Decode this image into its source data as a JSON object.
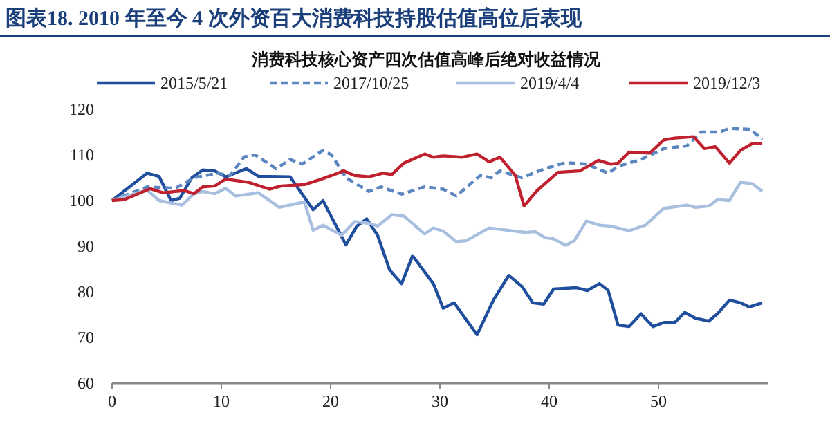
{
  "chart_data": {
    "type": "line",
    "title": "图表18.  2010 年至今 4 次外资百大消费科技持股估值高位后表现",
    "subtitle": "消费科技核心资产四次估值高峰后绝对收益情况",
    "xlim": [
      0,
      60
    ],
    "xticks": [
      0,
      10,
      20,
      30,
      40,
      50
    ],
    "ylim": [
      60,
      120
    ],
    "yticks": [
      60,
      70,
      80,
      90,
      100,
      110,
      120
    ],
    "grid": false,
    "legend": "top",
    "marker": "none",
    "series": [
      {
        "name": "2015/5/21",
        "color": "#1f4e9c",
        "line_style": "solid",
        "x": [
          0,
          3.2,
          4.3,
          5.4,
          6.2,
          7.3,
          8.3,
          9.4,
          10.4,
          12.3,
          13.4,
          16.3,
          18.4,
          19.3,
          21.4,
          22.4,
          23.3,
          24.3,
          25.4,
          26.5,
          27.5,
          29.4,
          30.3,
          31.3,
          33.4,
          34.9,
          36.3,
          37.5,
          38.5,
          39.5,
          40.4,
          42.5,
          43.5,
          44.6,
          45.4,
          46.3,
          47.3,
          48.4,
          49.5,
          50.5,
          51.5,
          52.4,
          53.4,
          54.6,
          55.4,
          56.5,
          57.5,
          58.3,
          59.5
        ],
        "values": [
          100,
          106,
          105.3,
          100,
          100.5,
          105,
          106.7,
          106.5,
          105.2,
          107,
          105.3,
          105.2,
          98,
          100,
          90.3,
          94.4,
          96,
          92.4,
          84.8,
          81.8,
          87.9,
          81.8,
          76.4,
          77.6,
          70.6,
          78.2,
          83.6,
          81.2,
          77.6,
          77.3,
          80.6,
          80.9,
          80.3,
          81.8,
          80.3,
          72.7,
          72.4,
          75.2,
          72.4,
          73.3,
          73.3,
          75.5,
          74.2,
          73.6,
          75.2,
          78.2,
          77.6,
          76.7,
          77.6
        ]
      },
      {
        "name": "2017/10/25",
        "color": "#5b86c0",
        "line_style": "dashed",
        "x": [
          0,
          3.2,
          5.8,
          7.5,
          9.6,
          10.8,
          12.1,
          13.1,
          15,
          16.3,
          17.4,
          19.3,
          20.1,
          21.4,
          23.5,
          24.6,
          26.5,
          28.6,
          30.3,
          31.5,
          33.7,
          34.7,
          35.5,
          37.5,
          39.6,
          41.5,
          43.4,
          45.4,
          46.3,
          48.4,
          50.5,
          52.6,
          53.9,
          55.6,
          56.5,
          58.4,
          59.5
        ],
        "values": [
          100,
          103,
          102.7,
          105,
          106,
          105.5,
          109.6,
          110,
          107,
          109,
          108,
          111,
          110,
          105,
          102,
          103,
          101.4,
          103,
          102.5,
          101,
          105.5,
          105,
          106.5,
          105,
          107,
          108.3,
          108,
          106,
          107.5,
          109,
          111.4,
          112,
          115,
          115,
          115.8,
          115.6,
          113.4
        ]
      },
      {
        "name": "2019/4/4",
        "color": "#a9bfe0",
        "line_style": "solid",
        "x": [
          0,
          3.2,
          4.3,
          6.4,
          7.5,
          8.3,
          9.4,
          10.4,
          11.3,
          13.4,
          15.3,
          17.6,
          18.4,
          19.3,
          21,
          22.2,
          23.5,
          24.3,
          25.6,
          26.7,
          28.6,
          29.4,
          30.3,
          31.5,
          32.4,
          34.5,
          37.9,
          38.7,
          39.6,
          40.4,
          41.5,
          42.3,
          43.4,
          44.6,
          45.6,
          47.3,
          48.8,
          50.5,
          52.6,
          53.4,
          54.6,
          55.4,
          56.5,
          57.5,
          58.6,
          59.5
        ],
        "values": [
          100,
          102.3,
          100,
          99,
          101.5,
          102,
          101.5,
          102.7,
          101,
          101.7,
          98.5,
          99.7,
          93.5,
          94.6,
          92.4,
          95.4,
          95,
          94.4,
          96.9,
          96.6,
          92.7,
          94,
          93.3,
          91,
          91.2,
          94,
          93,
          93.2,
          91.9,
          91.6,
          90.2,
          91.2,
          95.5,
          94.6,
          94.4,
          93.4,
          94.6,
          98.3,
          99,
          98.5,
          98.8,
          100.2,
          100,
          104,
          103.7,
          102
        ]
      },
      {
        "name": "2019/12/3",
        "color": "#c0212e",
        "line_style": "solid",
        "x": [
          0,
          1.1,
          3.5,
          4.7,
          6.6,
          7.5,
          8.3,
          9.4,
          10.4,
          12.5,
          14.4,
          15.5,
          17.6,
          18.9,
          20.1,
          21.2,
          22.2,
          23.5,
          24.8,
          25.6,
          26.7,
          28.6,
          29.4,
          30.3,
          32,
          33.4,
          34.5,
          35.5,
          36.9,
          37.7,
          38.9,
          40.8,
          42.8,
          44.5,
          45.6,
          46.3,
          47.3,
          49.2,
          50.5,
          51.5,
          53.2,
          54.2,
          55.2,
          56.5,
          57.5,
          58.6,
          59.5
        ],
        "values": [
          100,
          100.2,
          102.6,
          101.7,
          102.2,
          101.5,
          103,
          103.2,
          104.7,
          104,
          102.5,
          103.2,
          103.5,
          104.5,
          105.5,
          106.5,
          105.5,
          105.2,
          106,
          105.7,
          108.2,
          110.2,
          109.5,
          109.8,
          109.5,
          110.2,
          108.5,
          109.5,
          105.5,
          98.8,
          102.2,
          106.2,
          106.5,
          108.8,
          108,
          108.2,
          110.6,
          110.4,
          113.3,
          113.7,
          114,
          111.4,
          111.8,
          108.2,
          111,
          112.5,
          112.5
        ]
      }
    ]
  }
}
